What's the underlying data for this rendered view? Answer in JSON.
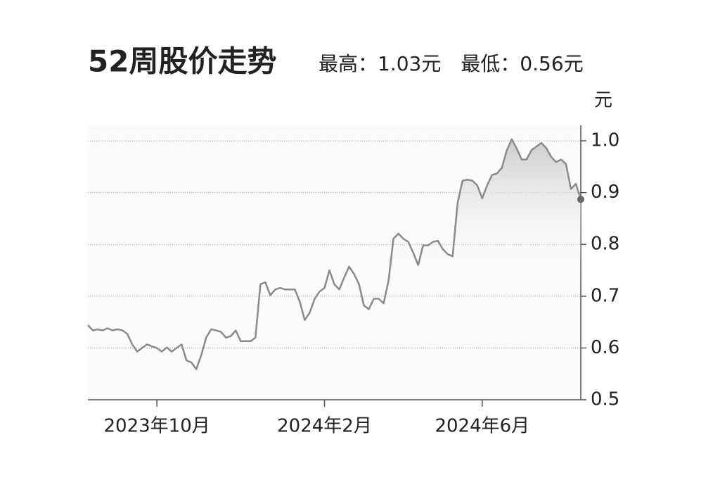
{
  "chart_data": {
    "type": "line",
    "title": "52周股价走势",
    "subtitle": "最高：1.03元　最低：0.56元",
    "y_unit": "元",
    "categories": [
      null,
      null,
      null,
      null,
      null,
      null,
      null,
      null,
      null,
      null,
      null,
      null,
      null,
      null,
      "2023年10月",
      null,
      null,
      null,
      null,
      null,
      null,
      null,
      null,
      null,
      null,
      null,
      null,
      null,
      null,
      null,
      null,
      null,
      null,
      null,
      null,
      null,
      null,
      null,
      null,
      null,
      null,
      null,
      null,
      null,
      null,
      null,
      null,
      null,
      "2024年2月",
      null,
      null,
      null,
      null,
      null,
      null,
      null,
      null,
      null,
      null,
      null,
      null,
      null,
      null,
      null,
      null,
      null,
      null,
      null,
      null,
      null,
      null,
      null,
      null,
      null,
      null,
      null,
      null,
      null,
      null,
      null,
      "2024年6月",
      null,
      null,
      null,
      null,
      null,
      null,
      null,
      null,
      null,
      null,
      null,
      null,
      null,
      null,
      null,
      null,
      null,
      null,
      null,
      null
    ],
    "series": [
      {
        "color": "#8a8a8a",
        "values": [
          0.644,
          0.634,
          0.636,
          0.634,
          0.638,
          0.634,
          0.636,
          0.634,
          0.627,
          0.607,
          0.593,
          0.6,
          0.607,
          0.603,
          0.6,
          0.593,
          0.601,
          0.593,
          0.6,
          0.607,
          0.576,
          0.572,
          0.559,
          0.586,
          0.62,
          0.636,
          0.634,
          0.631,
          0.62,
          0.623,
          0.634,
          0.613,
          0.613,
          0.613,
          0.62,
          0.723,
          0.727,
          0.702,
          0.713,
          0.716,
          0.713,
          0.713,
          0.713,
          0.689,
          0.654,
          0.668,
          0.695,
          0.709,
          0.716,
          0.75,
          0.723,
          0.713,
          0.736,
          0.757,
          0.743,
          0.723,
          0.682,
          0.675,
          0.695,
          0.695,
          0.686,
          0.73,
          0.811,
          0.821,
          0.811,
          0.805,
          0.784,
          0.76,
          0.798,
          0.798,
          0.805,
          0.807,
          0.791,
          0.781,
          0.777,
          0.88,
          0.923,
          0.925,
          0.923,
          0.914,
          0.889,
          0.914,
          0.934,
          0.937,
          0.948,
          0.982,
          1.003,
          0.985,
          0.964,
          0.964,
          0.982,
          0.989,
          0.996,
          0.986,
          0.969,
          0.959,
          0.964,
          0.955,
          0.907,
          0.917,
          0.887
        ]
      }
    ],
    "ylim": [
      0.5,
      1.03
    ],
    "yticks": [
      0.5,
      0.6,
      0.7,
      0.8,
      0.9,
      {
        "value": 1,
        "label": "1.0"
      }
    ],
    "grid": true,
    "area_fill": true,
    "end_marker": true
  }
}
